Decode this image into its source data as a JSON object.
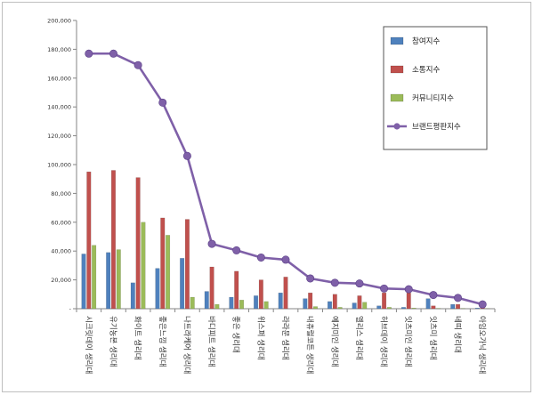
{
  "chart_data": {
    "type": "bar",
    "categories": [
      "시크릿데이 생리대",
      "유기농본 생리대",
      "화이트 생리대",
      "좋은느낌 생리대",
      "나트라케어 생리대",
      "바디피트 생리대",
      "좋은 생리대",
      "위스퍼 생리대",
      "라라문 생리대",
      "내츄럴코튼 생리대",
      "예지미인 생리대",
      "엘리스 생리대",
      "허브데이 생리대",
      "잇츠미인 생리대",
      "잇츠미 생리대",
      "네띠 생리대",
      "아임오가닉 생리대"
    ],
    "series": [
      {
        "name": "참여지수",
        "kind": "bar",
        "color": "#4f81bd",
        "values": [
          38000,
          39000,
          18000,
          28000,
          35000,
          12000,
          8000,
          9000,
          11000,
          7000,
          5000,
          4000,
          2000,
          1000,
          7000,
          3000,
          500
        ]
      },
      {
        "name": "소통지수",
        "kind": "bar",
        "color": "#c0504d",
        "values": [
          95000,
          96000,
          91000,
          63000,
          62000,
          29000,
          26000,
          20000,
          22000,
          11000,
          10000,
          9000,
          11000,
          11000,
          2000,
          3000,
          800
        ]
      },
      {
        "name": "커뮤니티지수",
        "kind": "bar",
        "color": "#9bbb59",
        "values": [
          44000,
          41000,
          60000,
          51000,
          8000,
          3000,
          6000,
          5000,
          0,
          1500,
          1000,
          4500,
          1000,
          500,
          300,
          200,
          100
        ]
      },
      {
        "name": "브랜드평판지수",
        "kind": "line",
        "color": "#7f60a8",
        "values": [
          177000,
          177000,
          169000,
          143000,
          106000,
          45000,
          40500,
          35500,
          34000,
          21000,
          18000,
          17500,
          14000,
          13500,
          9500,
          7500,
          3000
        ]
      }
    ],
    "ylim": [
      0,
      200000
    ],
    "yticks": [
      "-",
      "20,000",
      "40,000",
      "60,000",
      "80,000",
      "100,000",
      "120,000",
      "140,000",
      "160,000",
      "180,000",
      "200,000"
    ],
    "legend_position": "top-right",
    "grid": false
  }
}
